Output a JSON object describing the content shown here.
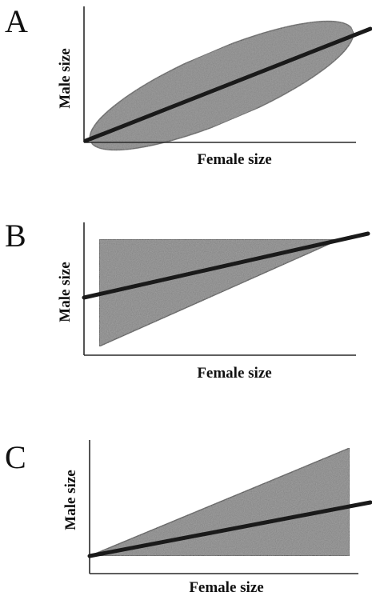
{
  "colors": {
    "region_fill": "#7f7f7f",
    "trend_line": "#1a1a1a",
    "axis": "#2a2a2a",
    "background": "#ffffff"
  },
  "panels": [
    {
      "letter": "A",
      "xlabel": "Female size",
      "ylabel": "Male size",
      "region_shape": "ellipse"
    },
    {
      "letter": "B",
      "xlabel": "Female size",
      "ylabel": "Male size",
      "region_shape": "triangle"
    },
    {
      "letter": "C",
      "xlabel": "Female size",
      "ylabel": "Male size",
      "region_shape": "triangle"
    }
  ]
}
